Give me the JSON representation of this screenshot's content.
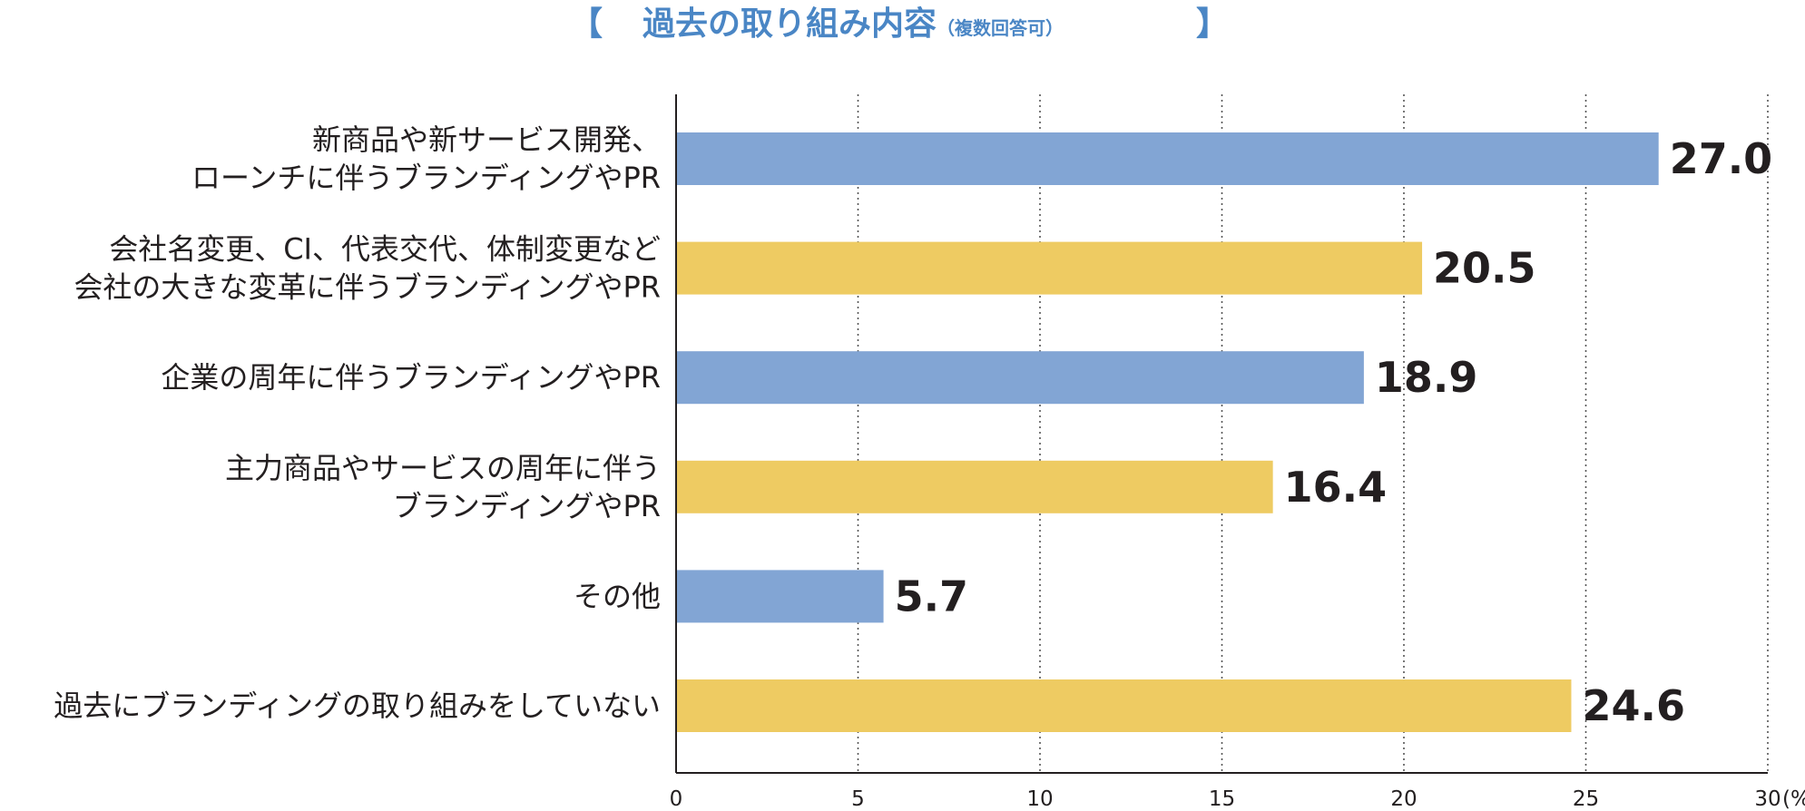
{
  "chart_data": {
    "type": "bar",
    "orientation": "horizontal",
    "title": "過去の取り組み内容",
    "subtitle": "（複数回答可）",
    "bracket_open": "【",
    "bracket_close": "】",
    "categories": [
      [
        "新商品や新サービス開発、",
        "ローンチに伴うブランディングやPR"
      ],
      [
        "会社名変更、CI、代表交代、体制変更など",
        "会社の大きな変革に伴うブランディングやPR"
      ],
      [
        "企業の周年に伴うブランディングやPR"
      ],
      [
        "主力商品やサービスの周年に伴う",
        "ブランディングやPR"
      ],
      [
        "その他"
      ],
      [
        "過去にブランディングの取り組みをしていない"
      ]
    ],
    "values": [
      27.0,
      20.5,
      18.9,
      16.4,
      5.7,
      24.6
    ],
    "value_labels": [
      "27.0",
      "20.5",
      "18.9",
      "16.4",
      "5.7",
      "24.6"
    ],
    "xlim": [
      0,
      30
    ],
    "ticks": [
      "0",
      "5",
      "10",
      "15",
      "20",
      "25",
      "30"
    ],
    "unit": "(%)",
    "grid": "vertical dotted",
    "colors": {
      "bar_a": "#82a5d4",
      "bar_b": "#eecb62",
      "grid": "#555555",
      "axis": "#231f20",
      "title": "#4a86c5",
      "text": "#231f20"
    }
  }
}
